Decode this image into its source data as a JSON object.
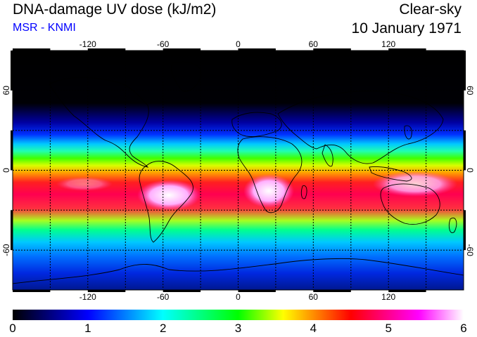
{
  "title": "DNA-damage UV dose (kJ/m2)",
  "subtitle": "MSR - KNMI",
  "product": "Clear-sky",
  "date": "10 January 1971",
  "map": {
    "lon_ticks": [
      "-120",
      "-60",
      "0",
      "60",
      "120"
    ],
    "lat_ticks": [
      "60",
      "0",
      "-60"
    ],
    "extent": {
      "lon": [
        -180,
        180
      ],
      "lat": [
        -90,
        90
      ]
    }
  },
  "colorbar": {
    "labels": [
      "0",
      "1",
      "2",
      "3",
      "4",
      "5",
      "6"
    ],
    "range": [
      0,
      6
    ],
    "colors": [
      "#000000",
      "#0000ff",
      "#00ffff",
      "#00ff00",
      "#ffff00",
      "#ff0000",
      "#ff00ff",
      "#ffffff"
    ]
  }
}
